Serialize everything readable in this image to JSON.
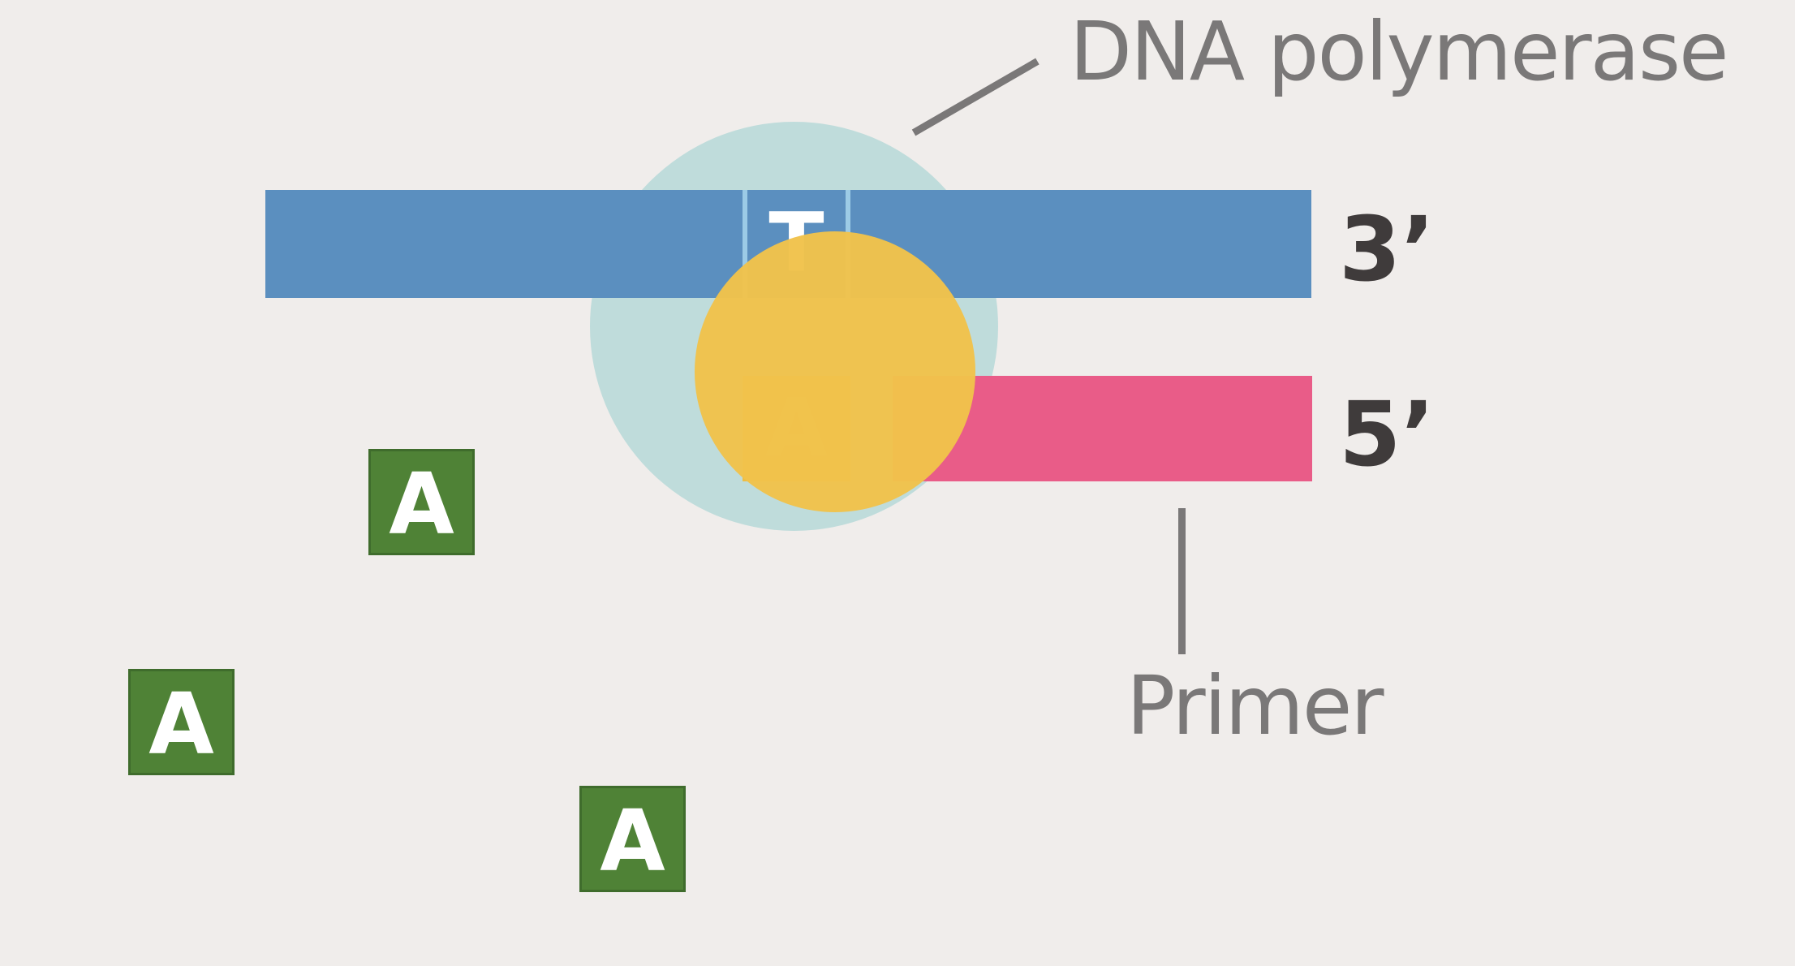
{
  "labels": {
    "polymerase": "DNA polymerase",
    "primer": "Primer",
    "three_prime": "3’",
    "five_prime": "5’"
  },
  "bases": {
    "template_base": "T",
    "paired_base": "A"
  },
  "free_nucleotides": [
    "A",
    "A",
    "A"
  ],
  "colors": {
    "background": "#f0edeb",
    "template_strand": "#5b8fbf",
    "primer_strand": "#e95c88",
    "polymerase": "#bfdcdb",
    "active_site": "#f1c24b",
    "nucleotide": "#4f8236",
    "label_text": "#7a7878",
    "end_label_text": "#3f3b3b"
  }
}
